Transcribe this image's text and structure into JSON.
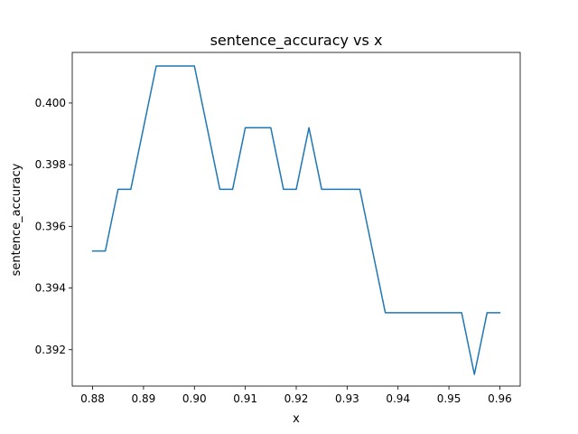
{
  "chart_data": {
    "type": "line",
    "title": "sentence_accuracy vs x",
    "xlabel": "x",
    "ylabel": "sentence_accuracy",
    "xlim": [
      0.876,
      0.964
    ],
    "ylim": [
      0.39082,
      0.40164
    ],
    "grid": false,
    "x_ticks": [
      0.88,
      0.89,
      0.9,
      0.91,
      0.92,
      0.93,
      0.94,
      0.95,
      0.96
    ],
    "x_tick_labels": [
      "0.88",
      "0.89",
      "0.90",
      "0.91",
      "0.92",
      "0.93",
      "0.94",
      "0.95",
      "0.96"
    ],
    "y_ticks": [
      0.392,
      0.394,
      0.396,
      0.398,
      0.4
    ],
    "y_tick_labels": [
      "0.392",
      "0.394",
      "0.396",
      "0.398",
      "0.400"
    ],
    "series": [
      {
        "color": "#1f77b4",
        "x": [
          0.88,
          0.8825,
          0.885,
          0.8875,
          0.89,
          0.8925,
          0.895,
          0.8975,
          0.9,
          0.9025,
          0.905,
          0.9075,
          0.91,
          0.9125,
          0.915,
          0.9175,
          0.92,
          0.9225,
          0.925,
          0.9275,
          0.93,
          0.9325,
          0.935,
          0.9375,
          0.94,
          0.9425,
          0.945,
          0.9475,
          0.95,
          0.9525,
          0.955,
          0.9575,
          0.96
        ],
        "y": [
          0.3952,
          0.3952,
          0.3972,
          0.3972,
          0.3992,
          0.4012,
          0.4012,
          0.4012,
          0.4012,
          0.3992,
          0.3972,
          0.3972,
          0.3992,
          0.3992,
          0.3992,
          0.3972,
          0.3972,
          0.3992,
          0.3972,
          0.3972,
          0.3972,
          0.3972,
          0.3952,
          0.3932,
          0.3932,
          0.3932,
          0.3932,
          0.3932,
          0.3932,
          0.3932,
          0.3912,
          0.3932,
          0.3932
        ]
      }
    ]
  }
}
